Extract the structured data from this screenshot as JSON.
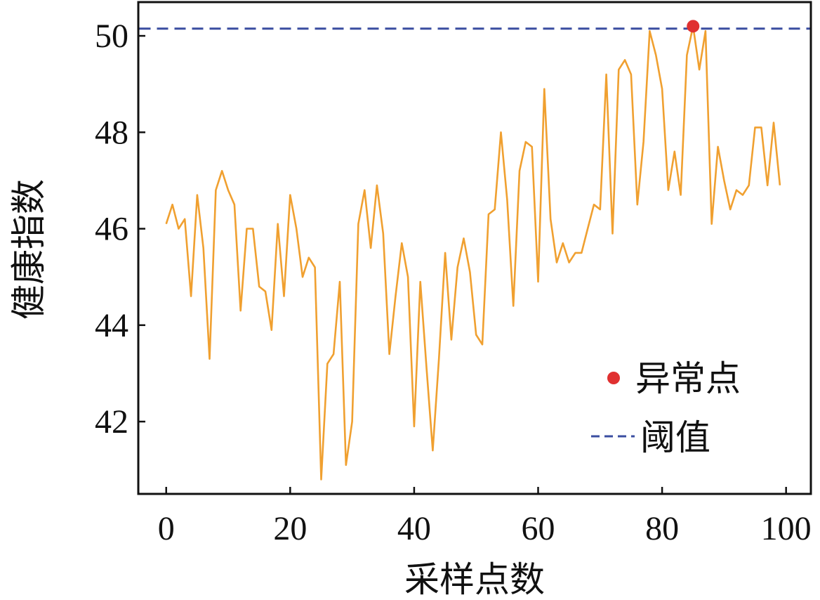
{
  "chart_data": {
    "type": "line",
    "xlabel": "采样点数",
    "ylabel": "健康指数",
    "xlim": [
      -4.5,
      104
    ],
    "ylim": [
      40.5,
      50.7
    ],
    "xticks": [
      0,
      20,
      40,
      60,
      80,
      100
    ],
    "yticks": [
      42,
      44,
      46,
      48,
      50
    ],
    "grid": false,
    "legend_position": "bottom-right",
    "x": [
      0,
      1,
      2,
      3,
      4,
      5,
      6,
      7,
      8,
      9,
      10,
      11,
      12,
      13,
      14,
      15,
      16,
      17,
      18,
      19,
      20,
      21,
      22,
      23,
      24,
      25,
      26,
      27,
      28,
      29,
      30,
      31,
      32,
      33,
      34,
      35,
      36,
      37,
      38,
      39,
      40,
      41,
      42,
      43,
      44,
      45,
      46,
      47,
      48,
      49,
      50,
      51,
      52,
      53,
      54,
      55,
      56,
      57,
      58,
      59,
      60,
      61,
      62,
      63,
      64,
      65,
      66,
      67,
      68,
      69,
      70,
      71,
      72,
      73,
      74,
      75,
      76,
      77,
      78,
      79,
      80,
      81,
      82,
      83,
      84,
      85,
      86,
      87,
      88,
      89,
      90,
      91,
      92,
      93,
      94,
      95,
      96,
      97,
      98,
      99
    ],
    "series": [
      {
        "name": "",
        "color": "#f0a030",
        "values": [
          46.1,
          46.5,
          46.0,
          46.2,
          44.6,
          46.7,
          45.6,
          43.3,
          46.8,
          47.2,
          46.8,
          46.5,
          44.3,
          46.0,
          46.0,
          44.8,
          44.7,
          43.9,
          46.1,
          44.6,
          46.7,
          46.0,
          45.0,
          45.4,
          45.2,
          40.8,
          43.2,
          43.4,
          44.9,
          41.1,
          42.0,
          46.1,
          46.8,
          45.6,
          46.9,
          45.9,
          43.4,
          44.6,
          45.7,
          45.0,
          41.9,
          44.9,
          43.1,
          41.4,
          43.3,
          45.5,
          43.7,
          45.2,
          45.8,
          45.1,
          43.8,
          43.6,
          46.3,
          46.4,
          48.0,
          46.6,
          44.4,
          47.2,
          47.8,
          47.7,
          44.9,
          48.9,
          46.2,
          45.3,
          45.7,
          45.3,
          45.5,
          45.5,
          46.0,
          46.5,
          46.4,
          49.2,
          45.9,
          49.3,
          49.5,
          49.2,
          46.5,
          47.8,
          50.1,
          49.6,
          48.9,
          46.8,
          47.6,
          46.7,
          49.6,
          50.2,
          49.3,
          50.1,
          46.1,
          47.7,
          47.0,
          46.4,
          46.8,
          46.7,
          46.9,
          48.1,
          48.1,
          46.9,
          48.2,
          46.9
        ]
      }
    ],
    "threshold": {
      "name": "阈值",
      "value": 50.15,
      "color": "#3a4da0"
    },
    "anomaly": {
      "name": "异常点",
      "x": 85,
      "y": 50.2,
      "color": "#e03030"
    }
  }
}
